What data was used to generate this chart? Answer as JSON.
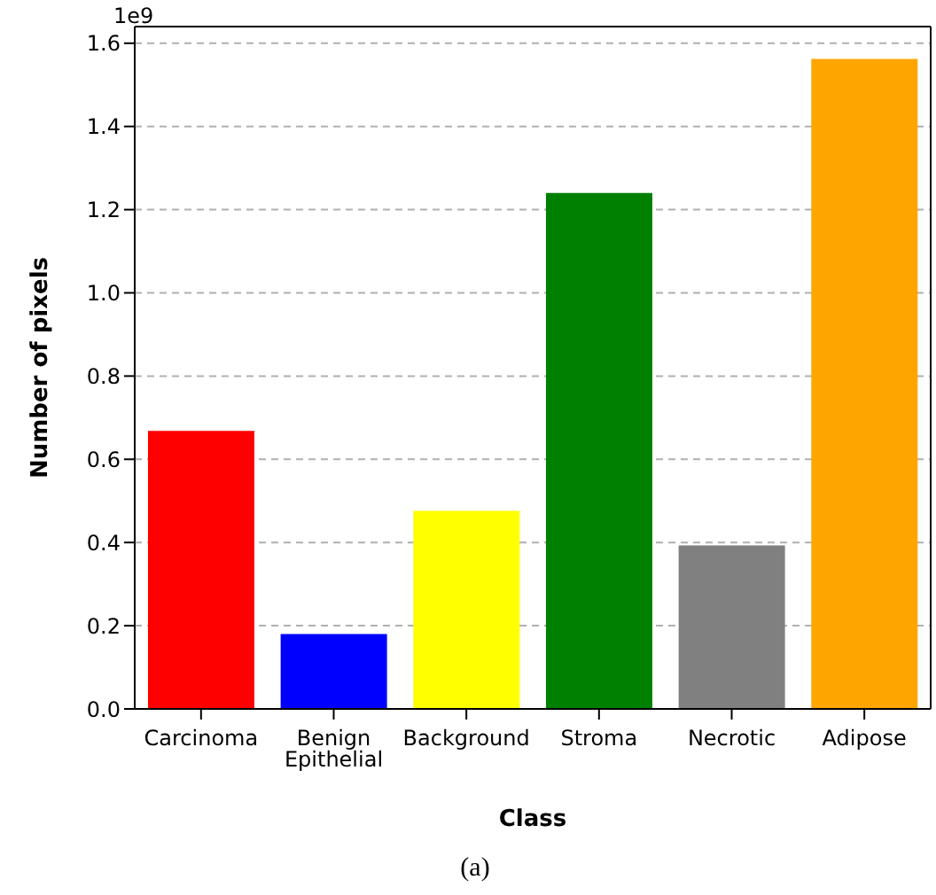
{
  "chart_data": {
    "type": "bar",
    "xlabel": "Class",
    "ylabel": "Number of pixels",
    "categories": [
      "Carcinoma",
      "Benign Epithelial",
      "Background",
      "Stroma",
      "Necrotic",
      "Adipose"
    ],
    "values": [
      0.668,
      0.18,
      0.476,
      1.24,
      0.393,
      1.562
    ],
    "colors": [
      "#ff0000",
      "#0000ff",
      "#ffff00",
      "#008000",
      "#808080",
      "#ffa500"
    ],
    "ylim": [
      0,
      1.64
    ],
    "yticks": [
      {
        "value": 0,
        "label": "0.0"
      },
      0.2,
      0.4,
      0.6,
      0.8,
      {
        "value": 1,
        "label": "1.0"
      },
      1.2,
      1.4,
      1.6
    ],
    "grid": "y",
    "annotations": [
      "1e9",
      "(a)"
    ]
  }
}
